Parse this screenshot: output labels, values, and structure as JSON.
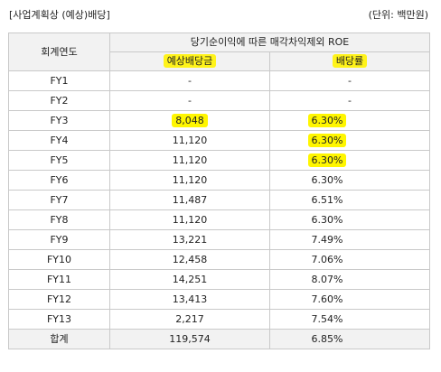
{
  "caption": {
    "title": "[사업계획상 (예상)배당]",
    "unit": "(단위: 백만원)"
  },
  "table": {
    "year_header": "회계연도",
    "group_header": "당기순이익에 따른 매각차익제외 ROE",
    "col_dividend": "예상배당금",
    "col_rate": "배당률",
    "rows": [
      {
        "year": "FY1",
        "dividend": "-",
        "rate": "-"
      },
      {
        "year": "FY2",
        "dividend": "-",
        "rate": "-"
      },
      {
        "year": "FY3",
        "dividend": "8,048",
        "rate": "6.30%"
      },
      {
        "year": "FY4",
        "dividend": "11,120",
        "rate": "6.30%"
      },
      {
        "year": "FY5",
        "dividend": "11,120",
        "rate": "6.30%"
      },
      {
        "year": "FY6",
        "dividend": "11,120",
        "rate": "6.30%"
      },
      {
        "year": "FY7",
        "dividend": "11,487",
        "rate": "6.51%"
      },
      {
        "year": "FY8",
        "dividend": "11,120",
        "rate": "6.30%"
      },
      {
        "year": "FY9",
        "dividend": "13,221",
        "rate": "7.49%"
      },
      {
        "year": "FY10",
        "dividend": "12,458",
        "rate": "7.06%"
      },
      {
        "year": "FY11",
        "dividend": "14,251",
        "rate": "8.07%"
      },
      {
        "year": "FY12",
        "dividend": "13,413",
        "rate": "7.60%"
      },
      {
        "year": "FY13",
        "dividend": "2,217",
        "rate": "7.54%"
      }
    ],
    "total": {
      "label": "합계",
      "dividend": "119,574",
      "rate": "6.85%"
    }
  },
  "colors": {
    "highlight": "#fff600",
    "header_bg": "#f2f2f2",
    "border": "#c9c9c9"
  }
}
